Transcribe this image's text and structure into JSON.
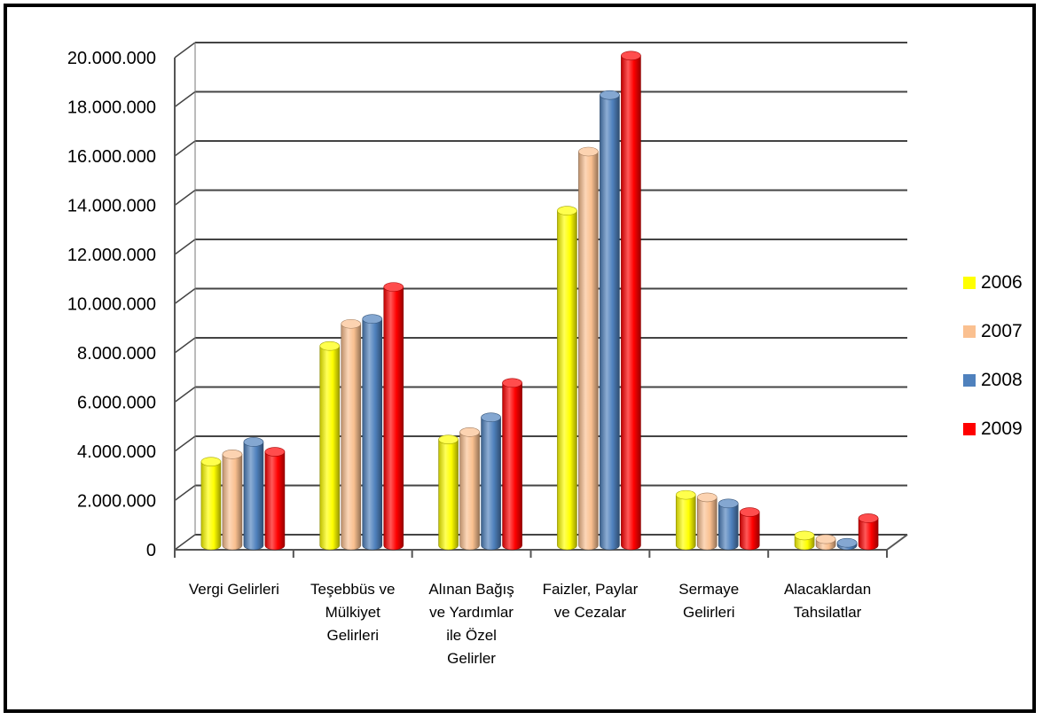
{
  "chart_data": {
    "type": "bar",
    "categories": [
      [
        "Vergi Gelirleri"
      ],
      [
        "Teşebbüs ve",
        "Mülkiyet",
        "Gelirleri"
      ],
      [
        "Alınan Bağış",
        "ve Yardımlar",
        "ile Özel",
        "Gelirler"
      ],
      [
        "Faizler, Paylar",
        "ve Cezalar"
      ],
      [
        "Sermaye",
        "Gelirleri"
      ],
      [
        "Alacaklardan",
        "Tahsilatlar"
      ]
    ],
    "series": [
      {
        "name": "2006",
        "color": "#ffff00",
        "values": [
          3400000,
          8100000,
          4300000,
          13600000,
          2050000,
          400000
        ]
      },
      {
        "name": "2007",
        "color": "#fac090",
        "values": [
          3700000,
          9000000,
          4600000,
          16000000,
          1950000,
          250000
        ]
      },
      {
        "name": "2008",
        "color": "#4f81bd",
        "values": [
          4200000,
          9200000,
          5200000,
          18300000,
          1700000,
          100000
        ]
      },
      {
        "name": "2009",
        "color": "#ff0000",
        "values": [
          3800000,
          10500000,
          6600000,
          19900000,
          1350000,
          1100000
        ]
      }
    ],
    "y_ticks": [
      "0",
      "2.000.000",
      "4.000.000",
      "6.000.000",
      "8.000.000",
      "10.000.000",
      "12.000.000",
      "14.000.000",
      "16.000.000",
      "18.000.000",
      "20.000.000"
    ],
    "ylim": [
      0,
      20000000
    ],
    "grid": true,
    "legend_position": "right"
  }
}
